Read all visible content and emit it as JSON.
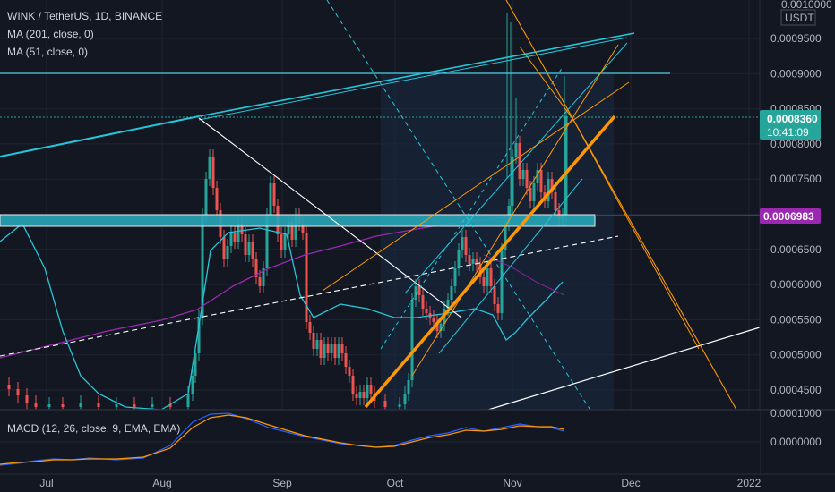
{
  "header": {
    "title": "WINK / TetherUS, 1D, BINANCE",
    "ma1": "MA (201, close, 0)",
    "ma2": "MA (51, close, 0)",
    "macd": "MACD (12, 26, close, 9, EMA, EMA)"
  },
  "price_scale": {
    "currency": "USDT",
    "top_label": "0.0010000",
    "ticks": [
      "0.0009500",
      "0.0009000",
      "0.0008500",
      "0.0008000",
      "0.0007500",
      "0.0007000",
      "0.0006500",
      "0.0006000",
      "0.0005500",
      "0.0005000",
      "0.0004500"
    ],
    "current_price": "0.0008360",
    "countdown": "10:41:09",
    "level_label": "0.0006983"
  },
  "macd_scale": {
    "ticks": [
      "0.0001000",
      "0.0000000"
    ]
  },
  "time_scale": {
    "ticks": [
      "Jul",
      "Aug",
      "Sep",
      "Oct",
      "Nov",
      "Dec",
      "2022"
    ]
  },
  "colors": {
    "background": "#131722",
    "current_price": "#26a69a",
    "level": "#9c27b0",
    "trendline_cyan": "#26c6da",
    "orange": "#ff9800"
  },
  "chart_data": {
    "type": "candlestick",
    "title": "WINK / TetherUS, 1D, BINANCE",
    "ylim": [
      0.00042,
      0.00101
    ],
    "x_ticks": [
      "Jul",
      "Aug",
      "Sep",
      "Oct",
      "Nov",
      "Dec",
      "2022"
    ],
    "current_price": 0.000836,
    "horizontal_level": 0.0006983,
    "series": [
      {
        "name": "MA (201, close, 0)",
        "color": "#9c27b0"
      },
      {
        "name": "MA (51, close, 0)",
        "color": "#26c6da"
      }
    ],
    "macd": {
      "name": "MACD (12, 26, close, 9, EMA, EMA)",
      "ylim": [
        -3e-05,
        0.0001
      ]
    }
  }
}
